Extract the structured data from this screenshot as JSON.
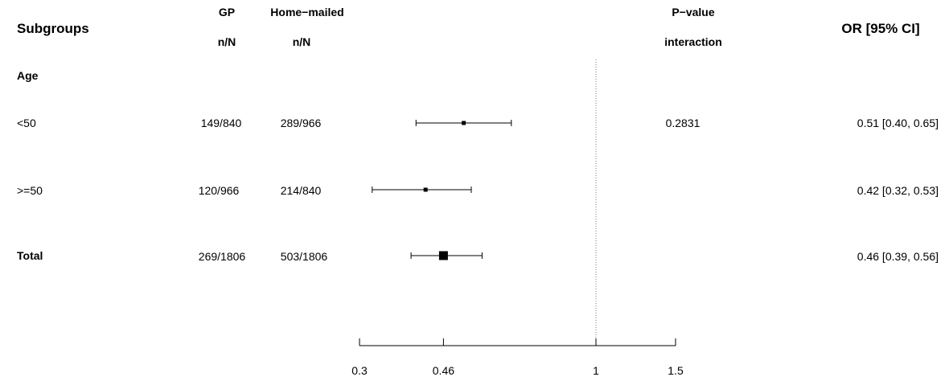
{
  "headers": {
    "subgroups": "Subgroups",
    "gp_line1": "GP",
    "gp_line2": "n/N",
    "home_line1": "Home−mailed",
    "home_line2": "n/N",
    "pval_line1": "P−value",
    "pval_line2": "interaction",
    "or": "OR [95% CI]"
  },
  "groups": [
    {
      "label": "Age"
    }
  ],
  "rows": [
    {
      "label": "<50",
      "gp": "149/840",
      "home": "289/966",
      "pvalue": "0.2831",
      "or_text": "0.51 [0.40, 0.65]",
      "bold": false
    },
    {
      "label": ">=50",
      "gp": "120/966",
      "home": "214/840",
      "pvalue": "",
      "or_text": "0.42 [0.32, 0.53]",
      "bold": false
    },
    {
      "label": "Total",
      "gp": "269/1806",
      "home": "503/1806",
      "pvalue": "",
      "or_text": "0.46 [0.39, 0.56]",
      "bold": true
    }
  ],
  "chart_data": {
    "type": "scatter",
    "subtype": "forest",
    "x_scale": "log",
    "xlim": [
      0.3,
      1.5
    ],
    "x_ticks": [
      0.3,
      0.46,
      1,
      1.5
    ],
    "reference_line": 1,
    "points": [
      {
        "label": "<50",
        "estimate": 0.51,
        "lower": 0.4,
        "upper": 0.65
      },
      {
        "label": ">=50",
        "estimate": 0.42,
        "lower": 0.32,
        "upper": 0.53
      },
      {
        "label": "Total",
        "estimate": 0.46,
        "lower": 0.39,
        "upper": 0.56
      }
    ]
  }
}
